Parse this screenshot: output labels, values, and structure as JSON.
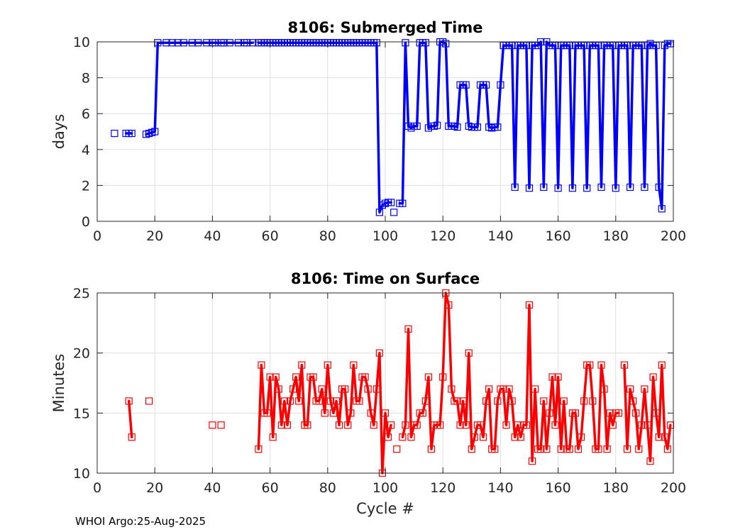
{
  "chart_data": [
    {
      "type": "line",
      "title": "8106: Submerged Time",
      "xlabel": "",
      "ylabel": "days",
      "xlim": [
        0,
        200
      ],
      "ylim": [
        0,
        10
      ],
      "xticks": [
        0,
        20,
        40,
        60,
        80,
        100,
        120,
        140,
        160,
        180,
        200
      ],
      "yticks": [
        0,
        2,
        4,
        6,
        8,
        10
      ],
      "grid": true,
      "color": "#0000ff",
      "marker": "square",
      "segments": [
        [
          [
            6,
            4.9
          ]
        ],
        [
          [
            10,
            4.9
          ],
          [
            11,
            4.9
          ],
          [
            12,
            4.9
          ]
        ],
        [
          [
            17,
            4.85
          ],
          [
            18,
            4.9
          ],
          [
            19,
            4.95
          ],
          [
            20,
            5.0
          ],
          [
            21,
            9.95
          ],
          [
            24,
            9.95
          ],
          [
            26,
            9.95
          ],
          [
            28,
            9.95
          ],
          [
            30,
            9.95
          ],
          [
            33,
            9.95
          ],
          [
            35,
            9.95
          ],
          [
            38,
            9.95
          ],
          [
            40,
            9.95
          ],
          [
            41,
            9.95
          ],
          [
            43,
            9.95
          ],
          [
            44,
            9.95
          ],
          [
            46,
            9.95
          ],
          [
            49,
            9.95
          ],
          [
            51,
            9.95
          ],
          [
            52,
            9.95
          ],
          [
            54,
            9.95
          ]
        ],
        [
          [
            56,
            9.95
          ],
          [
            57,
            9.95
          ],
          [
            58,
            9.95
          ],
          [
            59,
            9.95
          ],
          [
            60,
            9.95
          ],
          [
            61,
            9.95
          ],
          [
            62,
            9.95
          ],
          [
            63,
            9.95
          ],
          [
            64,
            9.95
          ],
          [
            65,
            9.95
          ],
          [
            66,
            9.95
          ],
          [
            67,
            9.95
          ],
          [
            68,
            9.95
          ],
          [
            69,
            9.95
          ],
          [
            70,
            9.95
          ],
          [
            71,
            9.95
          ],
          [
            72,
            9.95
          ],
          [
            73,
            9.95
          ],
          [
            74,
            9.95
          ],
          [
            75,
            9.95
          ],
          [
            76,
            9.95
          ],
          [
            77,
            9.95
          ],
          [
            78,
            9.95
          ],
          [
            79,
            9.95
          ],
          [
            80,
            9.95
          ],
          [
            81,
            9.95
          ],
          [
            82,
            9.95
          ],
          [
            83,
            9.95
          ],
          [
            84,
            9.95
          ],
          [
            85,
            9.95
          ],
          [
            86,
            9.95
          ],
          [
            87,
            9.95
          ],
          [
            88,
            9.95
          ],
          [
            89,
            9.95
          ],
          [
            90,
            9.95
          ],
          [
            91,
            9.95
          ],
          [
            92,
            9.95
          ],
          [
            93,
            9.95
          ],
          [
            94,
            9.95
          ],
          [
            95,
            9.95
          ],
          [
            96,
            9.95
          ],
          [
            97,
            9.95
          ],
          [
            98,
            0.5
          ],
          [
            99,
            0.9
          ],
          [
            100,
            1.0
          ],
          [
            101,
            1.05
          ],
          [
            102,
            1.05
          ]
        ],
        [
          [
            103,
            0.5
          ]
        ],
        [
          [
            105,
            1.0
          ],
          [
            106,
            1.0
          ],
          [
            107,
            9.95
          ],
          [
            108,
            5.3
          ],
          [
            109,
            5.2
          ],
          [
            110,
            5.3
          ],
          [
            111,
            5.3
          ],
          [
            112,
            9.95
          ],
          [
            113,
            9.95
          ],
          [
            114,
            9.95
          ],
          [
            115,
            5.2
          ],
          [
            116,
            5.3
          ],
          [
            117,
            5.3
          ],
          [
            118,
            5.35
          ],
          [
            119,
            10.0
          ],
          [
            120,
            10.0
          ],
          [
            121,
            9.9
          ],
          [
            122,
            5.3
          ],
          [
            123,
            5.3
          ],
          [
            124,
            5.3
          ],
          [
            125,
            5.25
          ],
          [
            126,
            7.6
          ],
          [
            127,
            7.6
          ],
          [
            128,
            7.6
          ],
          [
            129,
            5.3
          ],
          [
            130,
            5.25
          ],
          [
            131,
            5.25
          ],
          [
            132,
            5.25
          ],
          [
            133,
            7.6
          ],
          [
            134,
            7.6
          ],
          [
            135,
            7.6
          ],
          [
            136,
            5.25
          ],
          [
            137,
            5.2
          ],
          [
            138,
            5.25
          ],
          [
            139,
            5.25
          ],
          [
            140,
            7.6
          ],
          [
            141,
            9.8
          ],
          [
            142,
            9.8
          ],
          [
            143,
            9.8
          ],
          [
            144,
            9.8
          ],
          [
            145,
            1.9
          ],
          [
            146,
            9.8
          ],
          [
            147,
            9.8
          ],
          [
            148,
            9.8
          ],
          [
            149,
            9.8
          ],
          [
            150,
            1.85
          ],
          [
            151,
            9.8
          ],
          [
            152,
            9.8
          ],
          [
            153,
            9.8
          ],
          [
            154,
            10.0
          ],
          [
            155,
            1.9
          ],
          [
            156,
            10.0
          ],
          [
            157,
            9.8
          ],
          [
            158,
            9.8
          ],
          [
            159,
            9.8
          ],
          [
            160,
            1.85
          ],
          [
            161,
            9.8
          ],
          [
            162,
            9.8
          ],
          [
            163,
            9.8
          ],
          [
            164,
            9.8
          ],
          [
            165,
            1.85
          ],
          [
            166,
            9.8
          ],
          [
            167,
            9.8
          ],
          [
            168,
            9.8
          ],
          [
            169,
            9.8
          ],
          [
            170,
            1.85
          ],
          [
            171,
            9.8
          ],
          [
            172,
            9.8
          ],
          [
            173,
            9.8
          ],
          [
            174,
            9.8
          ],
          [
            175,
            1.9
          ],
          [
            176,
            9.8
          ],
          [
            177,
            9.8
          ],
          [
            178,
            9.8
          ],
          [
            179,
            9.8
          ],
          [
            180,
            1.85
          ],
          [
            181,
            9.8
          ],
          [
            182,
            9.8
          ],
          [
            183,
            9.8
          ],
          [
            184,
            9.8
          ],
          [
            185,
            1.9
          ],
          [
            186,
            9.8
          ],
          [
            187,
            9.8
          ],
          [
            188,
            9.8
          ],
          [
            189,
            9.8
          ],
          [
            190,
            1.9
          ],
          [
            191,
            9.8
          ],
          [
            192,
            9.9
          ],
          [
            193,
            9.8
          ],
          [
            194,
            9.8
          ],
          [
            195,
            1.9
          ],
          [
            196,
            0.7
          ],
          [
            197,
            9.8
          ],
          [
            198,
            9.9
          ],
          [
            199,
            9.9
          ]
        ]
      ]
    },
    {
      "type": "line",
      "title": "8106: Time on Surface",
      "xlabel": "Cycle #",
      "ylabel": "Minutes",
      "xlim": [
        0,
        200
      ],
      "ylim": [
        10,
        25
      ],
      "xticks": [
        0,
        20,
        40,
        60,
        80,
        100,
        120,
        140,
        160,
        180,
        200
      ],
      "yticks": [
        10,
        15,
        20,
        25
      ],
      "grid": true,
      "color": "#ff0000",
      "marker": "square",
      "segments": [
        [
          [
            11,
            16
          ],
          [
            12,
            13
          ]
        ],
        [
          [
            18,
            16
          ]
        ],
        [
          [
            40,
            14
          ]
        ],
        [
          [
            43,
            14
          ]
        ],
        [
          [
            56,
            12
          ],
          [
            57,
            19
          ],
          [
            58,
            15
          ],
          [
            59,
            15
          ],
          [
            60,
            18
          ],
          [
            61,
            13
          ],
          [
            62,
            18
          ],
          [
            63,
            17
          ],
          [
            64,
            14
          ],
          [
            65,
            16
          ],
          [
            66,
            14
          ],
          [
            67,
            16
          ],
          [
            68,
            17
          ],
          [
            69,
            18
          ],
          [
            70,
            16
          ],
          [
            71,
            19
          ],
          [
            72,
            14
          ],
          [
            73,
            14
          ],
          [
            74,
            18
          ],
          [
            75,
            18
          ],
          [
            76,
            16
          ],
          [
            77,
            16
          ],
          [
            78,
            17
          ],
          [
            79,
            15
          ],
          [
            80,
            19
          ],
          [
            81,
            16
          ],
          [
            82,
            15
          ],
          [
            83,
            16
          ],
          [
            84,
            14
          ],
          [
            85,
            17
          ],
          [
            86,
            17
          ],
          [
            87,
            14
          ],
          [
            88,
            15
          ],
          [
            89,
            19
          ],
          [
            90,
            16
          ],
          [
            91,
            16
          ],
          [
            92,
            18
          ],
          [
            93,
            18
          ],
          [
            94,
            17
          ],
          [
            95,
            15
          ],
          [
            96,
            14
          ],
          [
            97,
            17
          ],
          [
            98,
            20
          ],
          [
            99,
            10
          ],
          [
            100,
            15
          ],
          [
            101,
            13
          ],
          [
            102,
            14
          ]
        ],
        [
          [
            104,
            12
          ]
        ],
        [
          [
            106,
            13
          ],
          [
            107,
            14
          ],
          [
            108,
            22
          ],
          [
            109,
            13
          ],
          [
            110,
            14
          ],
          [
            111,
            14
          ],
          [
            112,
            15
          ],
          [
            113,
            15
          ],
          [
            114,
            16
          ],
          [
            115,
            18
          ],
          [
            116,
            12
          ],
          [
            117,
            14
          ],
          [
            118,
            14
          ],
          [
            119,
            14
          ],
          [
            120,
            18
          ],
          [
            121,
            25
          ],
          [
            122,
            24
          ],
          [
            123,
            17
          ],
          [
            124,
            16
          ],
          [
            125,
            16
          ],
          [
            126,
            14
          ],
          [
            127,
            16
          ],
          [
            128,
            14
          ],
          [
            129,
            20
          ],
          [
            130,
            12
          ],
          [
            131,
            13
          ],
          [
            132,
            14
          ],
          [
            133,
            14
          ],
          [
            134,
            13
          ],
          [
            135,
            16
          ],
          [
            136,
            17
          ],
          [
            137,
            12
          ],
          [
            138,
            12
          ],
          [
            139,
            16
          ],
          [
            140,
            17
          ],
          [
            141,
            17
          ],
          [
            142,
            14
          ],
          [
            143,
            17
          ],
          [
            144,
            16
          ],
          [
            145,
            13
          ],
          [
            146,
            14
          ],
          [
            147,
            13
          ],
          [
            148,
            14
          ],
          [
            149,
            14
          ],
          [
            150,
            24
          ],
          [
            151,
            11
          ],
          [
            152,
            17
          ],
          [
            153,
            12
          ],
          [
            154,
            12
          ],
          [
            155,
            16
          ],
          [
            156,
            12
          ],
          [
            157,
            15
          ],
          [
            158,
            18
          ],
          [
            159,
            14
          ],
          [
            160,
            18
          ],
          [
            161,
            12
          ],
          [
            162,
            16
          ],
          [
            163,
            12
          ],
          [
            164,
            12
          ],
          [
            165,
            15
          ],
          [
            166,
            15
          ],
          [
            167,
            12
          ],
          [
            168,
            13
          ],
          [
            169,
            16
          ],
          [
            170,
            19
          ],
          [
            171,
            19
          ],
          [
            172,
            16
          ],
          [
            173,
            12
          ],
          [
            174,
            12
          ],
          [
            175,
            19
          ],
          [
            176,
            17
          ],
          [
            177,
            12
          ],
          [
            178,
            15
          ],
          [
            179,
            14
          ],
          [
            180,
            15
          ],
          [
            181,
            15
          ]
        ],
        [
          [
            183,
            19
          ],
          [
            184,
            12
          ],
          [
            185,
            17
          ],
          [
            186,
            16
          ],
          [
            187,
            15
          ],
          [
            188,
            12
          ],
          [
            189,
            14
          ],
          [
            190,
            17
          ],
          [
            191,
            14
          ],
          [
            192,
            11
          ],
          [
            193,
            18
          ],
          [
            194,
            15
          ],
          [
            195,
            13
          ],
          [
            196,
            19
          ],
          [
            197,
            13
          ],
          [
            198,
            12
          ],
          [
            199,
            14
          ]
        ]
      ]
    }
  ],
  "footer": "WHOI Argo:25-Aug-2025"
}
